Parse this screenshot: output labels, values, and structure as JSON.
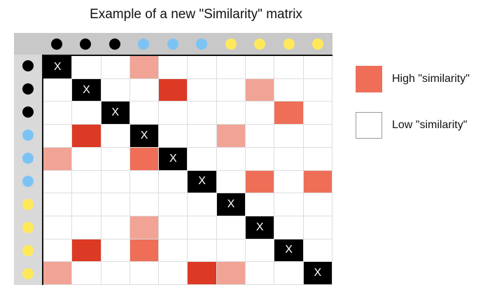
{
  "title": "Example of a new \"Similarity\" matrix",
  "colors": {
    "black": "#000000",
    "blue": "#7cc3f5",
    "yellow": "#ffe95a",
    "levels": [
      "#ffffff",
      "#f1a396",
      "#ef6e58",
      "#dc3a24",
      "#000000"
    ]
  },
  "groups": [
    "black",
    "black",
    "black",
    "blue",
    "blue",
    "blue",
    "yellow",
    "yellow",
    "yellow",
    "yellow"
  ],
  "diagonal_mark": "X",
  "matrix": [
    [
      4,
      0,
      0,
      1,
      0,
      0,
      0,
      0,
      0,
      0
    ],
    [
      0,
      4,
      0,
      0,
      3,
      0,
      0,
      1,
      0,
      0
    ],
    [
      0,
      0,
      4,
      0,
      0,
      0,
      0,
      0,
      2,
      0
    ],
    [
      0,
      3,
      0,
      4,
      0,
      0,
      1,
      0,
      0,
      0
    ],
    [
      1,
      0,
      0,
      2,
      4,
      0,
      0,
      0,
      0,
      0
    ],
    [
      0,
      0,
      0,
      0,
      0,
      4,
      0,
      2,
      0,
      2
    ],
    [
      0,
      0,
      0,
      0,
      0,
      0,
      4,
      0,
      0,
      0
    ],
    [
      0,
      0,
      0,
      1,
      0,
      0,
      0,
      4,
      0,
      0
    ],
    [
      0,
      3,
      0,
      2,
      0,
      0,
      0,
      0,
      4,
      0
    ],
    [
      1,
      0,
      0,
      0,
      0,
      3,
      1,
      0,
      0,
      4
    ]
  ],
  "legend": [
    {
      "label": "High \"similarity\"",
      "color": "#ef6e58"
    },
    {
      "label": "Low \"similarity\"",
      "color": "#ffffff"
    }
  ]
}
